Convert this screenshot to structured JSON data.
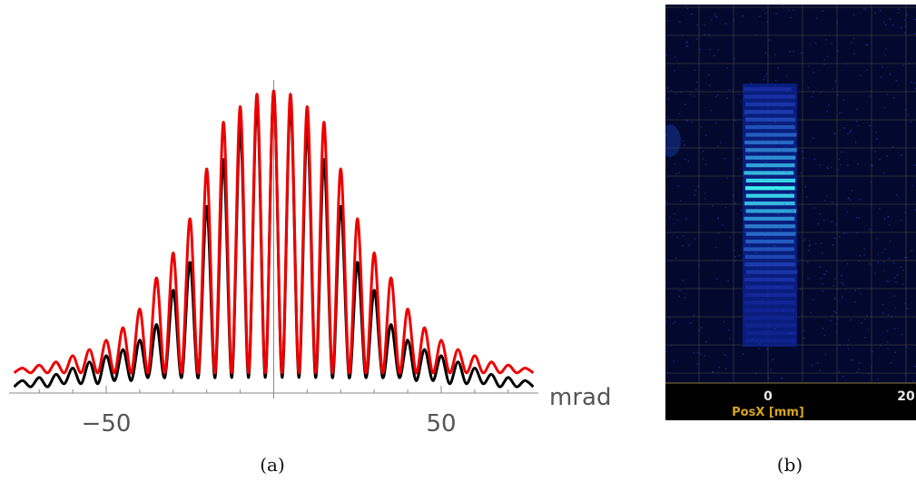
{
  "chart_data": {
    "type": "line",
    "caption": "(a)",
    "x_label": "mrad",
    "x": [
      -77.5,
      -75,
      -72.5,
      -70,
      -67.5,
      -65,
      -62.5,
      -60,
      -57.5,
      -55,
      -52.5,
      -50,
      -47.5,
      -45,
      -42.5,
      -40,
      -37.5,
      -35,
      -32.5,
      -30,
      -27.5,
      -25,
      -22.5,
      -20,
      -17.5,
      -15,
      -12.5,
      -10,
      -7.5,
      -5,
      -2.5,
      0,
      2.5,
      5,
      7.5,
      10,
      12.5,
      15,
      17.5,
      20,
      22.5,
      25,
      27.5,
      30,
      32.5,
      35,
      37.5,
      40,
      42.5,
      45,
      47.5,
      50,
      52.5,
      55,
      57.5,
      60,
      62.5,
      65,
      67.5,
      70,
      72.5,
      75,
      77.5
    ],
    "series": [
      {
        "color": "#ee0000",
        "values": [
          0.065,
          0.08,
          0.065,
          0.09,
          0.065,
          0.1,
          0.065,
          0.12,
          0.065,
          0.14,
          0.065,
          0.17,
          0.065,
          0.21,
          0.065,
          0.27,
          0.065,
          0.37,
          0.065,
          0.45,
          0.065,
          0.56,
          0.065,
          0.72,
          0.065,
          0.87,
          0.065,
          0.92,
          0.065,
          0.96,
          0.065,
          0.97,
          0.065,
          0.96,
          0.065,
          0.92,
          0.065,
          0.87,
          0.065,
          0.72,
          0.065,
          0.56,
          0.065,
          0.45,
          0.065,
          0.37,
          0.065,
          0.27,
          0.065,
          0.21,
          0.065,
          0.17,
          0.065,
          0.14,
          0.065,
          0.12,
          0.065,
          0.1,
          0.065,
          0.09,
          0.065,
          0.08,
          0.065
        ]
      },
      {
        "color": "#000000",
        "values": [
          0.02,
          0.04,
          0.02,
          0.05,
          0.02,
          0.06,
          0.03,
          0.08,
          0.03,
          0.1,
          0.03,
          0.12,
          0.04,
          0.14,
          0.04,
          0.17,
          0.05,
          0.22,
          0.05,
          0.33,
          0.05,
          0.42,
          0.05,
          0.6,
          0.05,
          0.75,
          0.05,
          0.85,
          0.05,
          0.93,
          0.05,
          0.97,
          0.05,
          0.93,
          0.05,
          0.85,
          0.05,
          0.75,
          0.05,
          0.6,
          0.05,
          0.42,
          0.05,
          0.33,
          0.05,
          0.22,
          0.05,
          0.17,
          0.04,
          0.14,
          0.04,
          0.12,
          0.03,
          0.1,
          0.03,
          0.08,
          0.03,
          0.06,
          0.02,
          0.05,
          0.02,
          0.04,
          0.02
        ]
      }
    ],
    "xlim": [
      -79,
      79
    ],
    "ylim": [
      0,
      1
    ],
    "xticks": [
      {
        "value": -50,
        "label": "−50"
      },
      50
    ],
    "xminor_ticks": [
      -70,
      -60,
      -40,
      -30,
      -20,
      -10,
      10,
      20,
      30,
      40,
      60,
      70
    ]
  },
  "image_panel": {
    "caption": "(b)",
    "x_label": "PosX [mm]",
    "xtick_labels": [
      "0",
      "20"
    ]
  }
}
